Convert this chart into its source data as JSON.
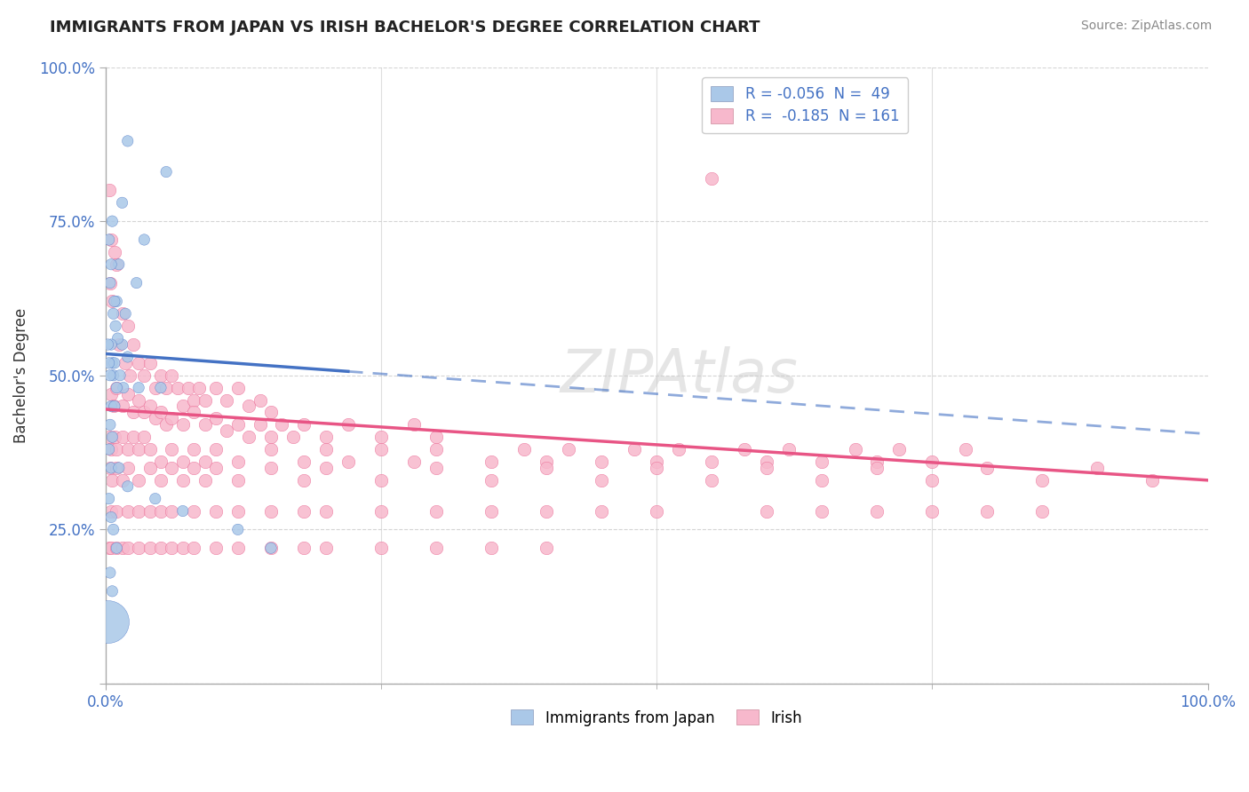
{
  "title": "IMMIGRANTS FROM JAPAN VS IRISH BACHELOR'S DEGREE CORRELATION CHART",
  "source": "Source: ZipAtlas.com",
  "ylabel": "Bachelor's Degree",
  "legend_label1": "Immigrants from Japan",
  "legend_label2": "Irish",
  "color_japan": "#aac8e8",
  "color_ireland": "#f7b8cc",
  "line_color_japan": "#4472c4",
  "line_color_ireland": "#e85585",
  "japan_points": [
    [
      2.0,
      0.88
    ],
    [
      5.5,
      0.83
    ],
    [
      1.5,
      0.78
    ],
    [
      3.5,
      0.72
    ],
    [
      1.2,
      0.68
    ],
    [
      2.8,
      0.65
    ],
    [
      1.0,
      0.62
    ],
    [
      1.8,
      0.6
    ],
    [
      0.8,
      0.62
    ],
    [
      0.5,
      0.68
    ],
    [
      0.3,
      0.72
    ],
    [
      0.6,
      0.75
    ],
    [
      0.4,
      0.65
    ],
    [
      0.7,
      0.6
    ],
    [
      1.5,
      0.55
    ],
    [
      2.0,
      0.53
    ],
    [
      0.9,
      0.58
    ],
    [
      1.1,
      0.56
    ],
    [
      0.5,
      0.55
    ],
    [
      0.6,
      0.52
    ],
    [
      0.7,
      0.5
    ],
    [
      0.8,
      0.52
    ],
    [
      1.3,
      0.5
    ],
    [
      1.6,
      0.48
    ],
    [
      0.4,
      0.5
    ],
    [
      0.3,
      0.52
    ],
    [
      0.2,
      0.55
    ],
    [
      0.5,
      0.45
    ],
    [
      0.8,
      0.45
    ],
    [
      1.0,
      0.48
    ],
    [
      3.0,
      0.48
    ],
    [
      5.0,
      0.48
    ],
    [
      0.4,
      0.42
    ],
    [
      0.6,
      0.4
    ],
    [
      0.3,
      0.38
    ],
    [
      0.5,
      0.35
    ],
    [
      1.2,
      0.35
    ],
    [
      2.0,
      0.32
    ],
    [
      4.5,
      0.3
    ],
    [
      7.0,
      0.28
    ],
    [
      12.0,
      0.25
    ],
    [
      15.0,
      0.22
    ],
    [
      0.3,
      0.3
    ],
    [
      0.5,
      0.27
    ],
    [
      0.7,
      0.25
    ],
    [
      1.0,
      0.22
    ],
    [
      0.4,
      0.18
    ],
    [
      0.6,
      0.15
    ],
    [
      0.2,
      0.1
    ]
  ],
  "japan_sizes": [
    80,
    80,
    80,
    80,
    80,
    80,
    80,
    80,
    80,
    80,
    80,
    80,
    80,
    80,
    80,
    80,
    80,
    80,
    80,
    80,
    80,
    80,
    80,
    80,
    80,
    80,
    80,
    80,
    80,
    80,
    80,
    80,
    80,
    80,
    80,
    80,
    80,
    80,
    80,
    80,
    80,
    80,
    80,
    80,
    80,
    80,
    80,
    80,
    1200
  ],
  "irish_points": [
    [
      0.3,
      0.8
    ],
    [
      0.5,
      0.72
    ],
    [
      0.8,
      0.7
    ],
    [
      1.0,
      0.68
    ],
    [
      0.4,
      0.65
    ],
    [
      0.6,
      0.62
    ],
    [
      1.5,
      0.6
    ],
    [
      2.0,
      0.58
    ],
    [
      2.5,
      0.55
    ],
    [
      3.0,
      0.52
    ],
    [
      1.2,
      0.55
    ],
    [
      1.8,
      0.52
    ],
    [
      2.2,
      0.5
    ],
    [
      3.5,
      0.5
    ],
    [
      4.0,
      0.52
    ],
    [
      4.5,
      0.48
    ],
    [
      5.0,
      0.5
    ],
    [
      5.5,
      0.48
    ],
    [
      6.0,
      0.5
    ],
    [
      6.5,
      0.48
    ],
    [
      7.0,
      0.45
    ],
    [
      7.5,
      0.48
    ],
    [
      8.0,
      0.46
    ],
    [
      8.5,
      0.48
    ],
    [
      9.0,
      0.46
    ],
    [
      10.0,
      0.48
    ],
    [
      11.0,
      0.46
    ],
    [
      12.0,
      0.48
    ],
    [
      13.0,
      0.45
    ],
    [
      14.0,
      0.46
    ],
    [
      15.0,
      0.44
    ],
    [
      0.5,
      0.47
    ],
    [
      0.7,
      0.45
    ],
    [
      1.0,
      0.48
    ],
    [
      1.5,
      0.45
    ],
    [
      2.0,
      0.47
    ],
    [
      2.5,
      0.44
    ],
    [
      3.0,
      0.46
    ],
    [
      3.5,
      0.44
    ],
    [
      4.0,
      0.45
    ],
    [
      4.5,
      0.43
    ],
    [
      5.0,
      0.44
    ],
    [
      5.5,
      0.42
    ],
    [
      6.0,
      0.43
    ],
    [
      7.0,
      0.42
    ],
    [
      8.0,
      0.44
    ],
    [
      9.0,
      0.42
    ],
    [
      10.0,
      0.43
    ],
    [
      11.0,
      0.41
    ],
    [
      12.0,
      0.42
    ],
    [
      13.0,
      0.4
    ],
    [
      14.0,
      0.42
    ],
    [
      15.0,
      0.4
    ],
    [
      16.0,
      0.42
    ],
    [
      17.0,
      0.4
    ],
    [
      18.0,
      0.42
    ],
    [
      20.0,
      0.4
    ],
    [
      22.0,
      0.42
    ],
    [
      25.0,
      0.4
    ],
    [
      28.0,
      0.42
    ],
    [
      30.0,
      0.4
    ],
    [
      0.3,
      0.4
    ],
    [
      0.5,
      0.38
    ],
    [
      0.8,
      0.4
    ],
    [
      1.0,
      0.38
    ],
    [
      1.5,
      0.4
    ],
    [
      2.0,
      0.38
    ],
    [
      2.5,
      0.4
    ],
    [
      3.0,
      0.38
    ],
    [
      3.5,
      0.4
    ],
    [
      4.0,
      0.38
    ],
    [
      5.0,
      0.36
    ],
    [
      6.0,
      0.38
    ],
    [
      7.0,
      0.36
    ],
    [
      8.0,
      0.38
    ],
    [
      9.0,
      0.36
    ],
    [
      10.0,
      0.38
    ],
    [
      12.0,
      0.36
    ],
    [
      15.0,
      0.38
    ],
    [
      18.0,
      0.36
    ],
    [
      20.0,
      0.38
    ],
    [
      22.0,
      0.36
    ],
    [
      25.0,
      0.38
    ],
    [
      28.0,
      0.36
    ],
    [
      30.0,
      0.38
    ],
    [
      35.0,
      0.36
    ],
    [
      38.0,
      0.38
    ],
    [
      40.0,
      0.36
    ],
    [
      42.0,
      0.38
    ],
    [
      45.0,
      0.36
    ],
    [
      48.0,
      0.38
    ],
    [
      50.0,
      0.36
    ],
    [
      52.0,
      0.38
    ],
    [
      55.0,
      0.36
    ],
    [
      58.0,
      0.38
    ],
    [
      60.0,
      0.36
    ],
    [
      62.0,
      0.38
    ],
    [
      65.0,
      0.36
    ],
    [
      68.0,
      0.38
    ],
    [
      70.0,
      0.36
    ],
    [
      72.0,
      0.38
    ],
    [
      75.0,
      0.36
    ],
    [
      78.0,
      0.38
    ],
    [
      0.4,
      0.35
    ],
    [
      0.6,
      0.33
    ],
    [
      1.0,
      0.35
    ],
    [
      1.5,
      0.33
    ],
    [
      2.0,
      0.35
    ],
    [
      3.0,
      0.33
    ],
    [
      4.0,
      0.35
    ],
    [
      5.0,
      0.33
    ],
    [
      6.0,
      0.35
    ],
    [
      7.0,
      0.33
    ],
    [
      8.0,
      0.35
    ],
    [
      9.0,
      0.33
    ],
    [
      10.0,
      0.35
    ],
    [
      12.0,
      0.33
    ],
    [
      15.0,
      0.35
    ],
    [
      18.0,
      0.33
    ],
    [
      20.0,
      0.35
    ],
    [
      25.0,
      0.33
    ],
    [
      30.0,
      0.35
    ],
    [
      35.0,
      0.33
    ],
    [
      40.0,
      0.35
    ],
    [
      45.0,
      0.33
    ],
    [
      50.0,
      0.35
    ],
    [
      55.0,
      0.33
    ],
    [
      60.0,
      0.35
    ],
    [
      65.0,
      0.33
    ],
    [
      70.0,
      0.35
    ],
    [
      75.0,
      0.33
    ],
    [
      80.0,
      0.35
    ],
    [
      85.0,
      0.33
    ],
    [
      90.0,
      0.35
    ],
    [
      95.0,
      0.33
    ],
    [
      0.5,
      0.28
    ],
    [
      1.0,
      0.28
    ],
    [
      2.0,
      0.28
    ],
    [
      3.0,
      0.28
    ],
    [
      4.0,
      0.28
    ],
    [
      5.0,
      0.28
    ],
    [
      6.0,
      0.28
    ],
    [
      8.0,
      0.28
    ],
    [
      10.0,
      0.28
    ],
    [
      12.0,
      0.28
    ],
    [
      15.0,
      0.28
    ],
    [
      18.0,
      0.28
    ],
    [
      20.0,
      0.28
    ],
    [
      25.0,
      0.28
    ],
    [
      30.0,
      0.28
    ],
    [
      35.0,
      0.28
    ],
    [
      40.0,
      0.28
    ],
    [
      45.0,
      0.28
    ],
    [
      50.0,
      0.28
    ],
    [
      55.0,
      0.82
    ],
    [
      60.0,
      0.28
    ],
    [
      65.0,
      0.28
    ],
    [
      70.0,
      0.28
    ],
    [
      75.0,
      0.28
    ],
    [
      80.0,
      0.28
    ],
    [
      85.0,
      0.28
    ],
    [
      0.3,
      0.22
    ],
    [
      0.5,
      0.22
    ],
    [
      1.0,
      0.22
    ],
    [
      1.5,
      0.22
    ],
    [
      2.0,
      0.22
    ],
    [
      3.0,
      0.22
    ],
    [
      4.0,
      0.22
    ],
    [
      5.0,
      0.22
    ],
    [
      6.0,
      0.22
    ],
    [
      7.0,
      0.22
    ],
    [
      8.0,
      0.22
    ],
    [
      10.0,
      0.22
    ],
    [
      12.0,
      0.22
    ],
    [
      15.0,
      0.22
    ],
    [
      18.0,
      0.22
    ],
    [
      20.0,
      0.22
    ],
    [
      25.0,
      0.22
    ],
    [
      30.0,
      0.22
    ],
    [
      35.0,
      0.22
    ],
    [
      40.0,
      0.22
    ]
  ],
  "xlim": [
    0,
    100
  ],
  "ylim": [
    0,
    1.0
  ],
  "yticks": [
    0.0,
    0.25,
    0.5,
    0.75,
    1.0
  ],
  "ytick_labels": [
    "",
    "25.0%",
    "50.0%",
    "75.0%",
    "100.0%"
  ],
  "xtick_labels": [
    "0.0%",
    "100.0%"
  ],
  "background_color": "#ffffff",
  "grid_color": "#d0d0d0",
  "japan_line_intercept": 0.535,
  "japan_line_slope": -0.0013,
  "japan_line_solid_end": 22.0,
  "irish_line_intercept": 0.445,
  "irish_line_slope": -0.00115
}
